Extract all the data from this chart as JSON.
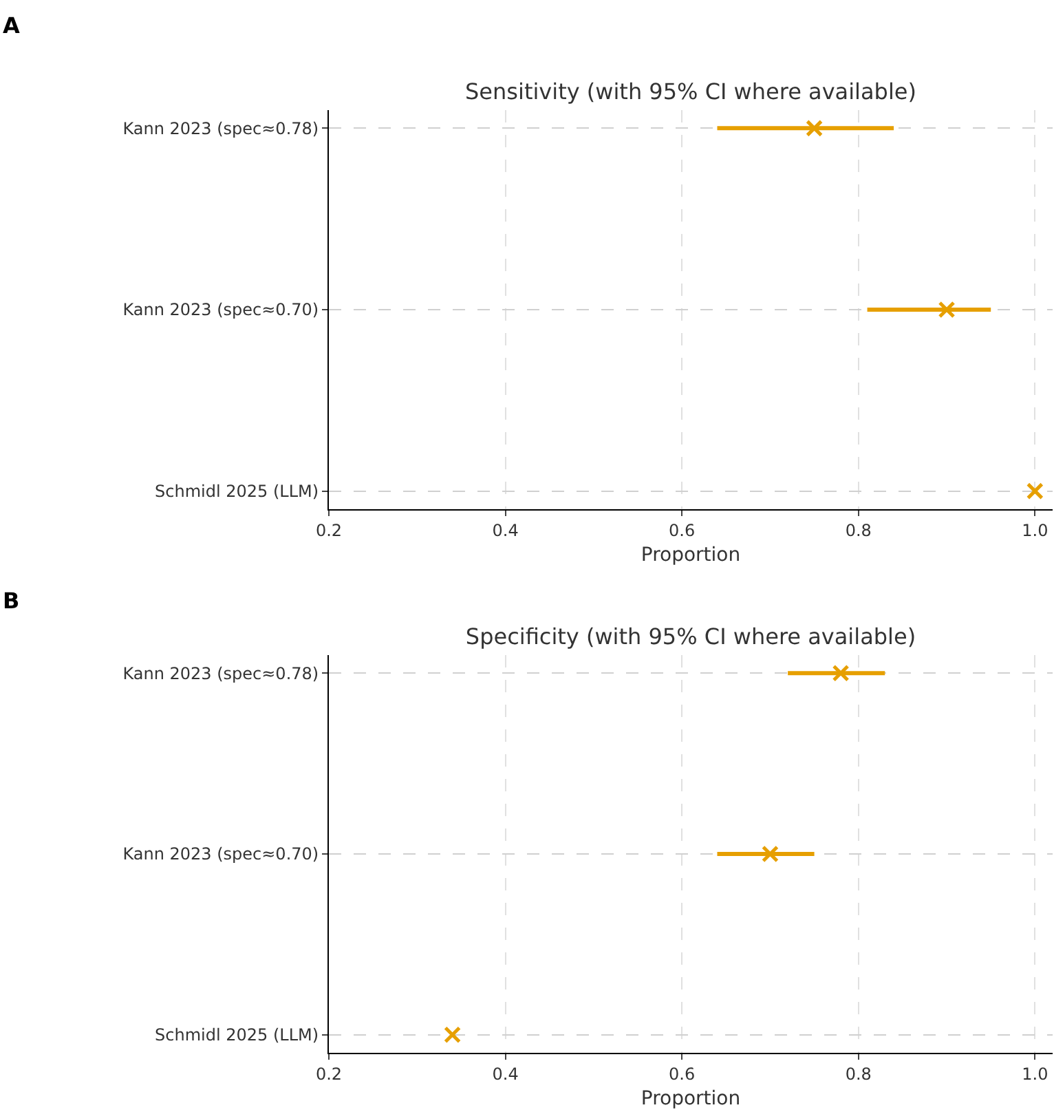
{
  "chart_data": [
    {
      "type": "scatter",
      "title": "Sensitivity (with 95% CI where available)",
      "xlabel": "Proportion",
      "annotations": [
        "A"
      ],
      "orientation": "horizontal",
      "categories": [
        "Kann 2023 (spec≈0.78)",
        "Kann 2023 (spec≈0.70)",
        "Schmidl 2025 (LLM)"
      ],
      "series": [
        {
          "color": "#e69f00",
          "values": [
            0.75,
            0.9,
            1.0
          ],
          "errors": [
            [
              0.64,
              0.84
            ],
            [
              0.81,
              0.95
            ],
            null
          ]
        }
      ],
      "xlim": [
        0.2,
        1.02
      ],
      "xticks": [
        0.2,
        0.4,
        0.6,
        0.8,
        {
          "value": 1,
          "label": "1.0"
        }
      ],
      "grid": true,
      "marker": "cross"
    },
    {
      "type": "scatter",
      "title": "Specificity (with 95% CI where available)",
      "xlabel": "Proportion",
      "annotations": [
        "B"
      ],
      "orientation": "horizontal",
      "categories": [
        "Kann 2023 (spec≈0.78)",
        "Kann 2023 (spec≈0.70)",
        "Schmidl 2025 (LLM)"
      ],
      "series": [
        {
          "color": "#e69f00",
          "values": [
            0.78,
            0.7,
            0.34
          ],
          "errors": [
            [
              0.72,
              0.83
            ],
            [
              0.64,
              0.75
            ],
            null
          ]
        }
      ],
      "xlim": [
        0.2,
        1.02
      ],
      "xticks": [
        0.2,
        0.4,
        0.6,
        0.8,
        {
          "value": 1,
          "label": "1.0"
        }
      ],
      "grid": true,
      "marker": "cross"
    }
  ]
}
